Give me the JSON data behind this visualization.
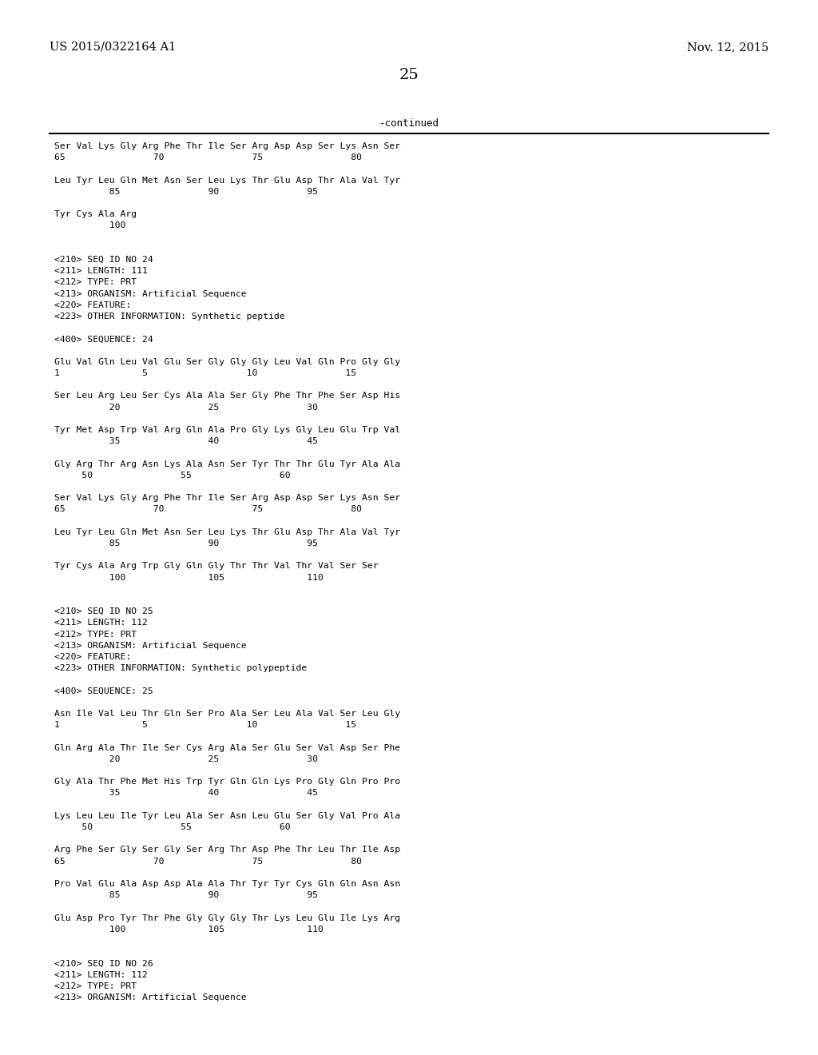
{
  "bg_color": "#ffffff",
  "header_left": "US 2015/0322164 A1",
  "header_right": "Nov. 12, 2015",
  "page_number": "25",
  "continued_label": "-continued",
  "content_lines": [
    "Ser Val Lys Gly Arg Phe Thr Ile Ser Arg Asp Asp Ser Lys Asn Ser",
    "65                70                75                80",
    "",
    "Leu Tyr Leu Gln Met Asn Ser Leu Lys Thr Glu Asp Thr Ala Val Tyr",
    "          85                90                95",
    "",
    "Tyr Cys Ala Arg",
    "          100",
    "",
    "",
    "<210> SEQ ID NO 24",
    "<211> LENGTH: 111",
    "<212> TYPE: PRT",
    "<213> ORGANISM: Artificial Sequence",
    "<220> FEATURE:",
    "<223> OTHER INFORMATION: Synthetic peptide",
    "",
    "<400> SEQUENCE: 24",
    "",
    "Glu Val Gln Leu Val Glu Ser Gly Gly Gly Leu Val Gln Pro Gly Gly",
    "1               5                  10                15",
    "",
    "Ser Leu Arg Leu Ser Cys Ala Ala Ser Gly Phe Thr Phe Ser Asp His",
    "          20                25                30",
    "",
    "Tyr Met Asp Trp Val Arg Gln Ala Pro Gly Lys Gly Leu Glu Trp Val",
    "          35                40                45",
    "",
    "Gly Arg Thr Arg Asn Lys Ala Asn Ser Tyr Thr Thr Glu Tyr Ala Ala",
    "     50                55                60",
    "",
    "Ser Val Lys Gly Arg Phe Thr Ile Ser Arg Asp Asp Ser Lys Asn Ser",
    "65                70                75                80",
    "",
    "Leu Tyr Leu Gln Met Asn Ser Leu Lys Thr Glu Asp Thr Ala Val Tyr",
    "          85                90                95",
    "",
    "Tyr Cys Ala Arg Trp Gly Gln Gly Thr Thr Val Thr Val Ser Ser",
    "          100               105               110",
    "",
    "",
    "<210> SEQ ID NO 25",
    "<211> LENGTH: 112",
    "<212> TYPE: PRT",
    "<213> ORGANISM: Artificial Sequence",
    "<220> FEATURE:",
    "<223> OTHER INFORMATION: Synthetic polypeptide",
    "",
    "<400> SEQUENCE: 25",
    "",
    "Asn Ile Val Leu Thr Gln Ser Pro Ala Ser Leu Ala Val Ser Leu Gly",
    "1               5                  10                15",
    "",
    "Gln Arg Ala Thr Ile Ser Cys Arg Ala Ser Glu Ser Val Asp Ser Phe",
    "          20                25                30",
    "",
    "Gly Ala Thr Phe Met His Trp Tyr Gln Gln Lys Pro Gly Gln Pro Pro",
    "          35                40                45",
    "",
    "Lys Leu Leu Ile Tyr Leu Ala Ser Asn Leu Glu Ser Gly Val Pro Ala",
    "     50                55                60",
    "",
    "Arg Phe Ser Gly Ser Gly Ser Arg Thr Asp Phe Thr Leu Thr Ile Asp",
    "65                70                75                80",
    "",
    "Pro Val Glu Ala Asp Asp Ala Ala Thr Tyr Tyr Cys Gln Gln Asn Asn",
    "          85                90                95",
    "",
    "Glu Asp Pro Tyr Thr Phe Gly Gly Gly Thr Lys Leu Glu Ile Lys Arg",
    "          100               105               110",
    "",
    "",
    "<210> SEQ ID NO 26",
    "<211> LENGTH: 112",
    "<212> TYPE: PRT",
    "<213> ORGANISM: Artificial Sequence"
  ]
}
